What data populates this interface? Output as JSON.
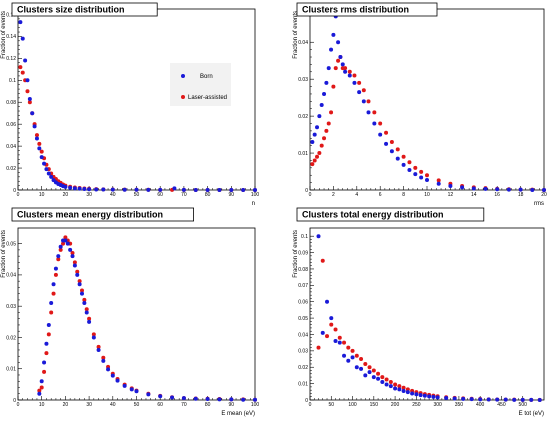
{
  "colors": {
    "born": "#1a1ad8",
    "laser": "#e01818",
    "frame": "#000000"
  },
  "legend": {
    "born": "Born",
    "laser": "Laser-assisted"
  },
  "chart_data": [
    {
      "type": "scatter",
      "title": "Clusters size distribution",
      "xlabel": "n",
      "ylabel": "Fraction of events",
      "xlim": [
        0,
        100
      ],
      "ylim": [
        0,
        0.165
      ],
      "xticks": [
        0,
        10,
        20,
        30,
        40,
        50,
        60,
        70,
        80,
        90,
        100
      ],
      "xticklabels": [
        "0",
        "10",
        "20",
        "30",
        "40",
        "50",
        "60",
        "70",
        "80",
        "90",
        "100"
      ],
      "yticks": [
        0,
        0.02,
        0.04,
        0.06,
        0.08,
        0.1,
        0.12,
        0.14,
        0.16
      ],
      "yticklabels": [
        "0",
        "0.02",
        "0.04",
        "0.06",
        "0.08",
        "0.1",
        "0.12",
        "0.14",
        "0.16"
      ],
      "legend_position": "top-right",
      "series": [
        {
          "name": "Born",
          "x": [
            1,
            2,
            3,
            4,
            5,
            6,
            7,
            8,
            9,
            10,
            11,
            12,
            13,
            14,
            15,
            16,
            17,
            18,
            19,
            20,
            22,
            24,
            26,
            28,
            30,
            33,
            36,
            40,
            45,
            50,
            55,
            60,
            66,
            70,
            75,
            80,
            85,
            90,
            95,
            100
          ],
          "y": [
            0.153,
            0.138,
            0.118,
            0.1,
            0.083,
            0.07,
            0.058,
            0.047,
            0.038,
            0.03,
            0.024,
            0.019,
            0.015,
            0.012,
            0.009,
            0.007,
            0.0055,
            0.0045,
            0.0035,
            0.0028,
            0.002,
            0.0015,
            0.0012,
            0.0009,
            0.0007,
            0.0005,
            0.0004,
            0.0003,
            0.0002,
            0.0002,
            0.0001,
            0.0001,
            0.0015,
            0.0001,
            0,
            0,
            0,
            0,
            0,
            0
          ]
        },
        {
          "name": "Laser-assisted",
          "x": [
            1,
            2,
            3,
            4,
            5,
            6,
            7,
            8,
            9,
            10,
            11,
            12,
            13,
            14,
            15,
            16,
            17,
            18,
            19,
            20,
            22,
            24,
            26,
            28,
            30,
            33,
            36,
            40,
            45,
            50,
            55,
            60,
            65,
            70,
            75,
            80,
            85,
            90,
            95,
            100
          ],
          "y": [
            0.112,
            0.107,
            0.1,
            0.09,
            0.08,
            0.07,
            0.06,
            0.05,
            0.042,
            0.035,
            0.029,
            0.023,
            0.019,
            0.015,
            0.012,
            0.01,
            0.008,
            0.0065,
            0.005,
            0.004,
            0.003,
            0.0023,
            0.0018,
            0.0014,
            0.0011,
            0.0008,
            0.0006,
            0.0004,
            0.0003,
            0.0002,
            0.0002,
            0.0001,
            0.0001,
            0.0001,
            0,
            0,
            0,
            0,
            0,
            0
          ]
        }
      ]
    },
    {
      "type": "scatter",
      "title": "Clusters rms distribution",
      "xlabel": "rms",
      "ylabel": "Fraction of events",
      "xlim": [
        0,
        20
      ],
      "ylim": [
        0,
        0.049
      ],
      "xticks": [
        0,
        2,
        4,
        6,
        8,
        10,
        12,
        14,
        16,
        18,
        20
      ],
      "xticklabels": [
        "0",
        "2",
        "4",
        "6",
        "8",
        "10",
        "12",
        "14",
        "16",
        "18",
        "20"
      ],
      "yticks": [
        0,
        0.01,
        0.02,
        0.03,
        0.04
      ],
      "yticklabels": [
        "0",
        "0.01",
        "0.02",
        "0.03",
        "0.04"
      ],
      "series": [
        {
          "name": "Born",
          "x": [
            0.2,
            0.4,
            0.6,
            0.8,
            1.0,
            1.2,
            1.4,
            1.6,
            1.8,
            2.0,
            2.2,
            2.4,
            2.6,
            2.8,
            3.0,
            3.4,
            3.8,
            4.2,
            4.6,
            5.0,
            5.5,
            6.0,
            6.5,
            7.0,
            7.5,
            8.0,
            8.5,
            9.0,
            9.5,
            10,
            11,
            12,
            13,
            14,
            15,
            16,
            17,
            18,
            19,
            20
          ],
          "y": [
            0.013,
            0.015,
            0.017,
            0.02,
            0.023,
            0.026,
            0.029,
            0.033,
            0.038,
            0.042,
            0.047,
            0.04,
            0.036,
            0.034,
            0.032,
            0.031,
            0.029,
            0.0265,
            0.024,
            0.021,
            0.018,
            0.015,
            0.0125,
            0.0105,
            0.0085,
            0.0068,
            0.0054,
            0.0043,
            0.0034,
            0.0027,
            0.0017,
            0.0011,
            0.0007,
            0.0004,
            0.0003,
            0.0002,
            0.0001,
            0.0001,
            0,
            0
          ]
        },
        {
          "name": "Laser-assisted",
          "x": [
            0.2,
            0.4,
            0.6,
            0.8,
            1.0,
            1.2,
            1.4,
            1.6,
            1.8,
            2.0,
            2.2,
            2.4,
            2.6,
            2.8,
            3.0,
            3.4,
            3.8,
            4.2,
            4.6,
            5.0,
            5.5,
            6.0,
            6.5,
            7.0,
            7.5,
            8.0,
            8.5,
            9.0,
            9.5,
            10,
            11,
            12,
            13,
            14,
            15,
            16,
            17,
            18,
            19,
            20
          ],
          "y": [
            0.007,
            0.008,
            0.009,
            0.01,
            0.012,
            0.014,
            0.016,
            0.018,
            0.021,
            0.028,
            0.033,
            0.035,
            0.036,
            0.033,
            0.033,
            0.032,
            0.031,
            0.029,
            0.027,
            0.024,
            0.021,
            0.018,
            0.0155,
            0.013,
            0.011,
            0.009,
            0.0075,
            0.006,
            0.0049,
            0.004,
            0.0026,
            0.0017,
            0.0011,
            0.0007,
            0.0005,
            0.0003,
            0.0002,
            0.0001,
            0.0001,
            0
          ]
        }
      ]
    },
    {
      "type": "scatter",
      "title": "Clusters mean energy distribution",
      "xlabel": "E mean (eV)",
      "ylabel": "Fraction of events",
      "xlim": [
        0,
        100
      ],
      "ylim": [
        0,
        0.055
      ],
      "xticks": [
        0,
        10,
        20,
        30,
        40,
        50,
        60,
        70,
        80,
        90,
        100
      ],
      "xticklabels": [
        "0",
        "10",
        "20",
        "30",
        "40",
        "50",
        "60",
        "70",
        "80",
        "90",
        "100"
      ],
      "yticks": [
        0,
        0.01,
        0.02,
        0.03,
        0.04,
        0.05
      ],
      "yticklabels": [
        "0",
        "0.01",
        "0.02",
        "0.03",
        "0.04",
        "0.05"
      ],
      "series": [
        {
          "name": "Born",
          "x": [
            9,
            10,
            11,
            12,
            13,
            14,
            15,
            16,
            17,
            18,
            19,
            20,
            21,
            22,
            23,
            24,
            25,
            26,
            27,
            28,
            29,
            30,
            32,
            34,
            36,
            38,
            40,
            42,
            45,
            48,
            50,
            55,
            60,
            65,
            70,
            75,
            80,
            85,
            90,
            95,
            100
          ],
          "y": [
            0.002,
            0.006,
            0.012,
            0.018,
            0.024,
            0.031,
            0.037,
            0.042,
            0.046,
            0.049,
            0.051,
            0.051,
            0.05,
            0.048,
            0.046,
            0.043,
            0.04,
            0.037,
            0.034,
            0.031,
            0.028,
            0.025,
            0.02,
            0.016,
            0.0125,
            0.0098,
            0.0078,
            0.0062,
            0.0045,
            0.0034,
            0.0028,
            0.0018,
            0.0012,
            0.0008,
            0.0006,
            0.0004,
            0.0003,
            0.0002,
            0.0002,
            0.0001,
            0.0001
          ]
        },
        {
          "name": "Laser-assisted",
          "x": [
            9,
            10,
            11,
            12,
            13,
            14,
            15,
            16,
            17,
            18,
            19,
            20,
            21,
            22,
            23,
            24,
            25,
            26,
            27,
            28,
            29,
            30,
            32,
            34,
            36,
            38,
            40,
            42,
            45,
            48,
            50,
            55,
            60,
            65,
            70,
            75,
            80,
            85,
            90,
            95,
            100
          ],
          "y": [
            0.003,
            0.004,
            0.009,
            0.015,
            0.021,
            0.028,
            0.034,
            0.04,
            0.045,
            0.048,
            0.05,
            0.052,
            0.051,
            0.05,
            0.047,
            0.044,
            0.041,
            0.038,
            0.035,
            0.032,
            0.029,
            0.026,
            0.021,
            0.017,
            0.0135,
            0.0106,
            0.0084,
            0.0067,
            0.0049,
            0.0037,
            0.003,
            0.002,
            0.0013,
            0.0009,
            0.0006,
            0.0005,
            0.0004,
            0.0003,
            0.0002,
            0.0002,
            0.0001
          ]
        }
      ]
    },
    {
      "type": "scatter",
      "title": "Clusters total energy distribution",
      "xlabel": "E tot (eV)",
      "ylabel": "Fraction of events",
      "xlim": [
        0,
        550
      ],
      "ylim": [
        0,
        0.105
      ],
      "xticks": [
        0,
        50,
        100,
        150,
        200,
        250,
        300,
        350,
        400,
        450,
        500
      ],
      "xticklabels": [
        "0",
        "50",
        "100",
        "150",
        "200",
        "250",
        "300",
        "350",
        "400",
        "450",
        "500"
      ],
      "yticks": [
        0,
        0.01,
        0.02,
        0.03,
        0.04,
        0.05,
        0.06,
        0.07,
        0.08,
        0.09,
        0.1
      ],
      "yticklabels": [
        "0",
        "0.01",
        "0.02",
        "0.03",
        "0.04",
        "0.05",
        "0.06",
        "0.07",
        "0.08",
        "0.09",
        "0.1"
      ],
      "series": [
        {
          "name": "Born",
          "x": [
            20,
            30,
            40,
            50,
            60,
            70,
            80,
            90,
            100,
            110,
            120,
            130,
            140,
            150,
            160,
            170,
            180,
            190,
            200,
            210,
            220,
            230,
            240,
            250,
            260,
            270,
            280,
            290,
            300,
            320,
            340,
            360,
            380,
            400,
            420,
            440,
            460,
            480,
            500,
            520,
            540
          ],
          "y": [
            0.1,
            0.041,
            0.06,
            0.05,
            0.036,
            0.035,
            0.027,
            0.024,
            0.026,
            0.02,
            0.019,
            0.015,
            0.017,
            0.014,
            0.013,
            0.011,
            0.0095,
            0.0085,
            0.007,
            0.0065,
            0.0055,
            0.0048,
            0.004,
            0.0035,
            0.003,
            0.0026,
            0.0022,
            0.0019,
            0.0016,
            0.0012,
            0.0009,
            0.0007,
            0.0005,
            0.0004,
            0.0003,
            0.0002,
            0.0002,
            0.0001,
            0.0001,
            0.0001,
            0
          ]
        },
        {
          "name": "Laser-assisted",
          "x": [
            20,
            30,
            40,
            50,
            60,
            70,
            80,
            90,
            100,
            110,
            120,
            130,
            140,
            150,
            160,
            170,
            180,
            190,
            200,
            210,
            220,
            230,
            240,
            250,
            260,
            270,
            280,
            290,
            300,
            320,
            340,
            360,
            380,
            400,
            420,
            440,
            460,
            480,
            500,
            520,
            540
          ],
          "y": [
            0.032,
            0.085,
            0.039,
            0.046,
            0.043,
            0.038,
            0.035,
            0.032,
            0.03,
            0.027,
            0.025,
            0.022,
            0.02,
            0.018,
            0.016,
            0.014,
            0.0125,
            0.011,
            0.0095,
            0.0085,
            0.0075,
            0.0065,
            0.0056,
            0.0048,
            0.0042,
            0.0036,
            0.0031,
            0.0027,
            0.0023,
            0.0017,
            0.0013,
            0.001,
            0.0008,
            0.0006,
            0.0004,
            0.0003,
            0.0002,
            0.0002,
            0.0001,
            0.0001,
            0.0001
          ]
        }
      ]
    }
  ]
}
